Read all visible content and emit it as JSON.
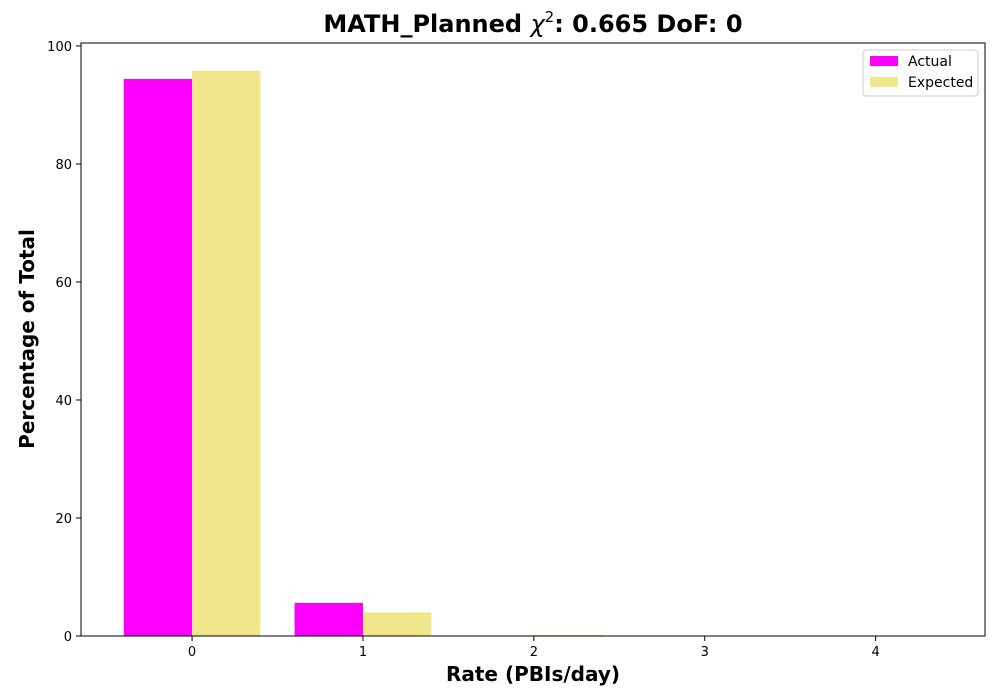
{
  "chart_data": {
    "type": "bar",
    "title": "MATH_Planned χ²: 0.665 DoF: 0",
    "title_parts": {
      "prefix": "MATH_Planned ",
      "symbol": "χ",
      "superscript": "2",
      "suffix": ": 0.665 DoF: 0"
    },
    "xlabel": "Rate (PBIs/day)",
    "ylabel": "Percentage of Total",
    "categories": [
      "0",
      "1",
      "2",
      "3",
      "4"
    ],
    "x": [
      0,
      1,
      2,
      3,
      4
    ],
    "xlim": [
      -0.65,
      4.64
    ],
    "ylim": [
      0,
      100.5
    ],
    "yticks": [
      0,
      20,
      40,
      60,
      80,
      100
    ],
    "grid": false,
    "legend_position": "top-right",
    "series": [
      {
        "name": "Actual",
        "color": "#ff00ff",
        "values": [
          94.4,
          5.6,
          0,
          0,
          0
        ]
      },
      {
        "name": "Expected",
        "color": "#f0e68c",
        "values": [
          95.8,
          4.0,
          0.2,
          0,
          0
        ]
      }
    ]
  }
}
